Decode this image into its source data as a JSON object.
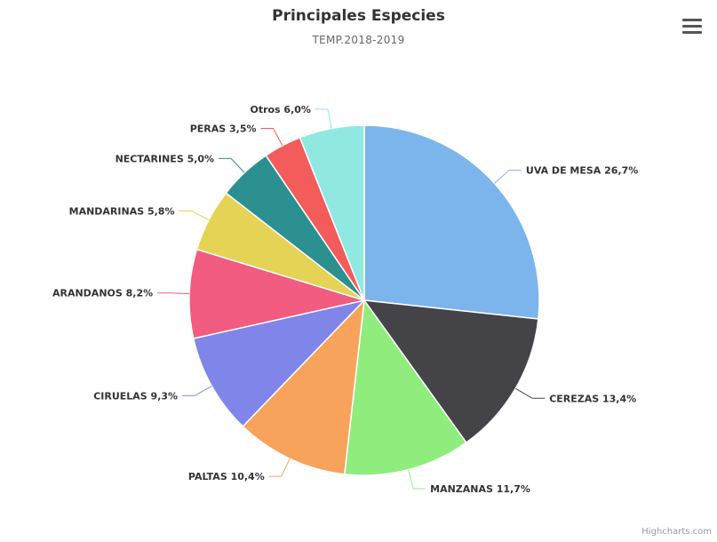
{
  "chart_data": {
    "type": "pie",
    "title": "Principales Especies",
    "subtitle": "TEMP.2018-2019",
    "slices": [
      {
        "name": "UVA DE MESA",
        "value": 26.7,
        "label": "UVA DE MESA 26,7%",
        "color": "#7cb5ec"
      },
      {
        "name": "CEREZAS",
        "value": 13.4,
        "label": "CEREZAS 13,4%",
        "color": "#434348"
      },
      {
        "name": "MANZANAS",
        "value": 11.7,
        "label": "MANZANAS 11,7%",
        "color": "#90ed7d"
      },
      {
        "name": "PALTAS",
        "value": 10.4,
        "label": "PALTAS 10,4%",
        "color": "#f7a35c"
      },
      {
        "name": "CIRUELAS",
        "value": 9.3,
        "label": "CIRUELAS 9,3%",
        "color": "#8085e9"
      },
      {
        "name": "ARANDANOS",
        "value": 8.2,
        "label": "ARANDANOS 8,2%",
        "color": "#f15c80"
      },
      {
        "name": "MANDARINAS",
        "value": 5.8,
        "label": "MANDARINAS 5,8%",
        "color": "#e4d354"
      },
      {
        "name": "NECTARINES",
        "value": 5.0,
        "label": "NECTARINES 5,0%",
        "color": "#2b908f"
      },
      {
        "name": "PERAS",
        "value": 3.5,
        "label": "PERAS 3,5%",
        "color": "#f45b5b"
      },
      {
        "name": "Otros",
        "value": 6.0,
        "label": "Otros 6,0%",
        "color": "#91e8e1"
      }
    ],
    "legend": "none"
  },
  "menu": {
    "icon": "hamburger-menu-icon"
  },
  "credits": "Highcharts.com"
}
